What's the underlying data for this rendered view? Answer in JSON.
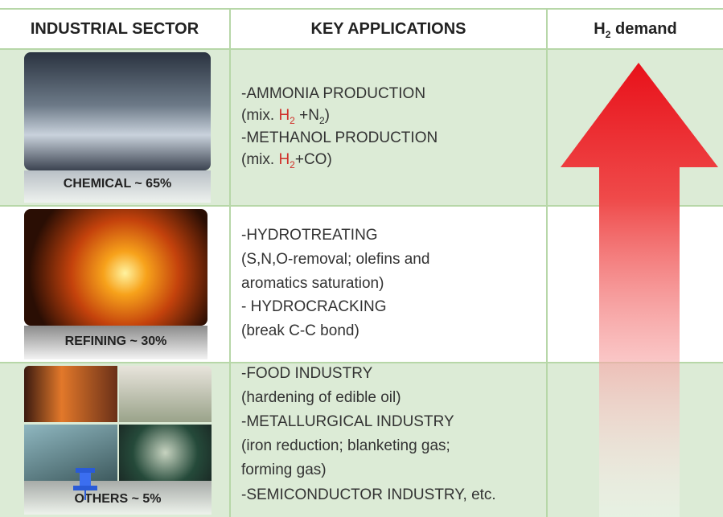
{
  "header": {
    "columns": [
      "INDUSTRIAL SECTOR",
      "KEY APPLICATIONS",
      [
        "H",
        "2",
        " demand"
      ]
    ]
  },
  "rows": [
    {
      "sector": "CHEMICAL ~ 65%",
      "applications": [
        "-AMMONIA PRODUCTION",
        [
          "(mix. ",
          "H",
          "2",
          " +N",
          "2",
          ")"
        ],
        "-METHANOL PRODUCTION",
        [
          "(mix. ",
          "H",
          "2",
          "+CO)"
        ]
      ]
    },
    {
      "sector": "REFINING ~ 30%",
      "applications": [
        "-HYDROTREATING",
        "(S,N,O-removal; olefins and",
        "aromatics saturation)",
        "- HYDROCRACKING",
        "(break C-C bond)"
      ]
    },
    {
      "sector": "OTHERS ~ 5%",
      "applications": [
        "-FOOD INDUSTRY",
        "(hardening of edible oil)",
        "-METALLURGICAL INDUSTRY",
        "(iron reduction; blanketing gas;",
        "forming gas)",
        "-SEMICONDUCTOR INDUSTRY, etc."
      ]
    }
  ]
}
